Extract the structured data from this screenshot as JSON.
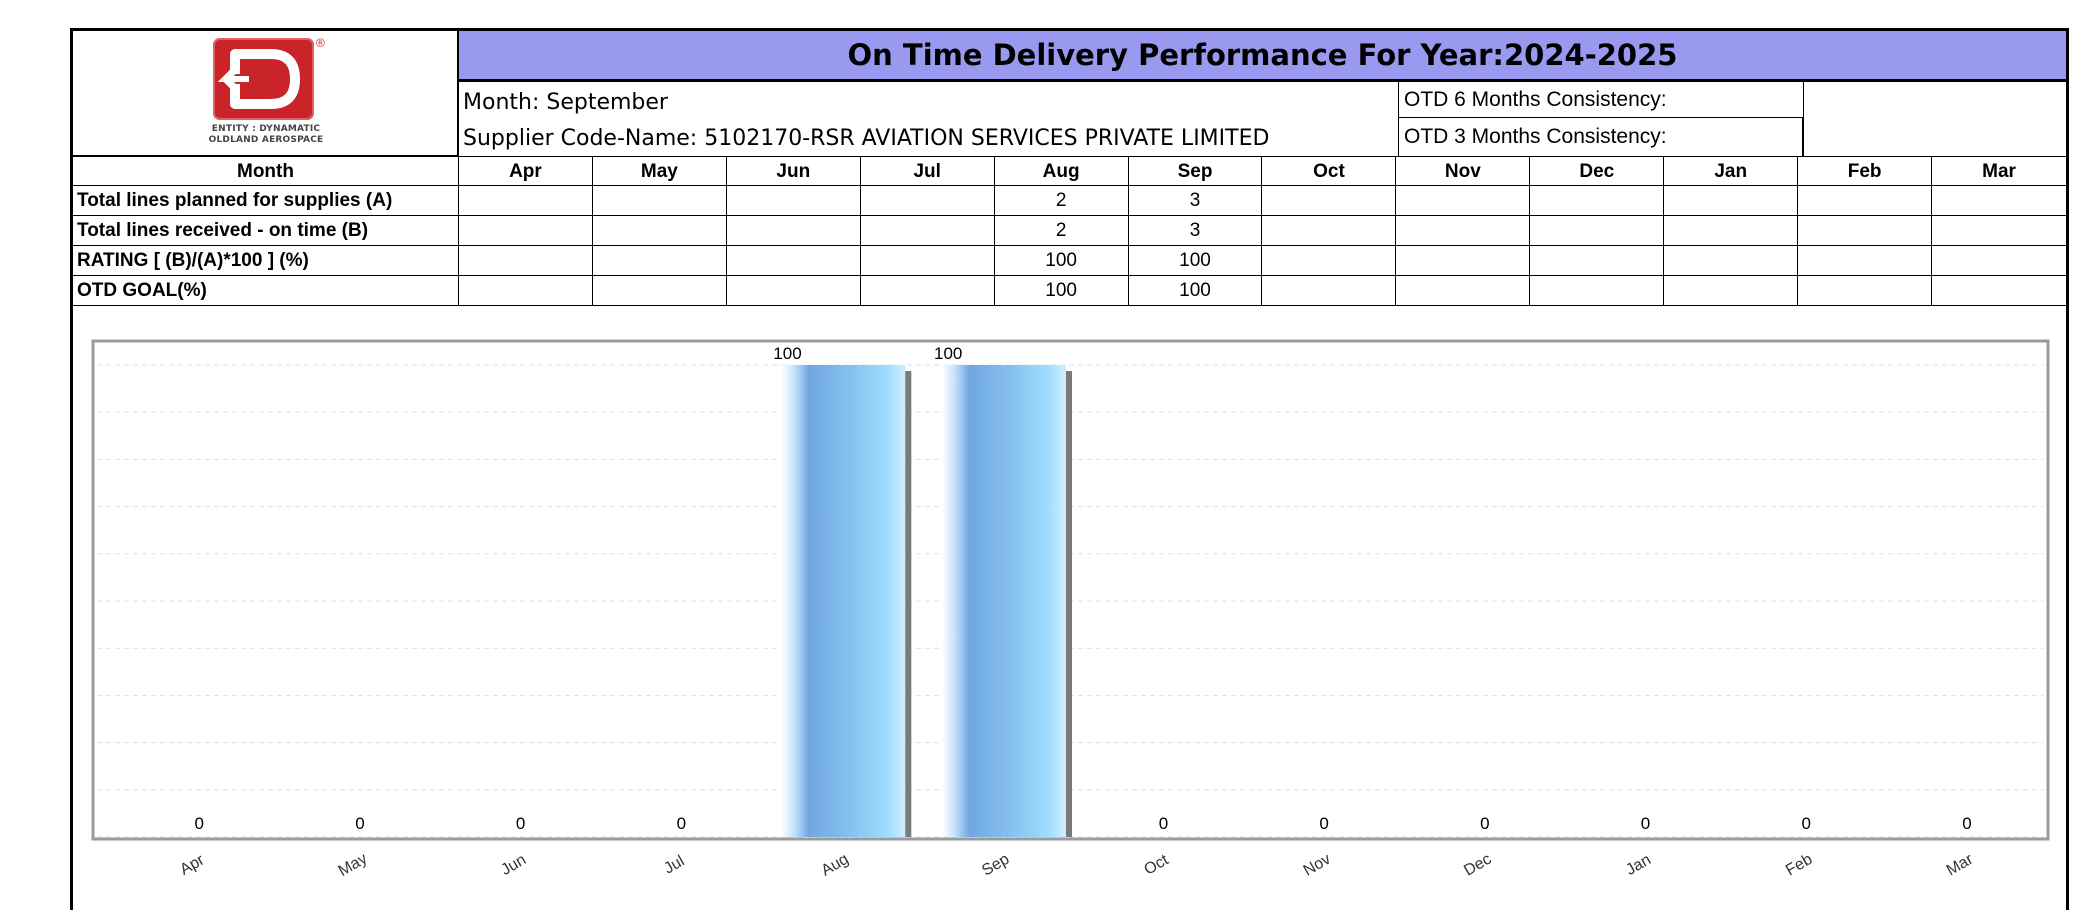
{
  "logo": {
    "alt_icon": "entity-dynamatic-logo",
    "registered_mark": "®",
    "line1": "ENTITY : DYNAMATIC",
    "line2": "OLDLAND AEROSPACE",
    "color": "#c8242a"
  },
  "header": {
    "title": "On Time Delivery Performance For Year:2024-2025",
    "title_bg": "#9999f0",
    "month_line": "Month: September",
    "supplier_line": "Supplier Code-Name: 5102170-RSR AVIATION SERVICES PRIVATE LIMITED",
    "otd6_label": "OTD 6 Months Consistency:",
    "otd3_label": "OTD 3 Months Consistency:"
  },
  "table": {
    "header_label": "Month",
    "months": [
      "Apr",
      "May",
      "Jun",
      "Jul",
      "Aug",
      "Sep",
      "Oct",
      "Nov",
      "Dec",
      "Jan",
      "Feb",
      "Mar"
    ],
    "rows": [
      {
        "label": "Total lines planned for supplies (A)",
        "values": [
          "",
          "",
          "",
          "",
          "2",
          "3",
          "",
          "",
          "",
          "",
          "",
          ""
        ]
      },
      {
        "label": "Total lines received - on time (B)",
        "values": [
          "",
          "",
          "",
          "",
          "2",
          "3",
          "",
          "",
          "",
          "",
          "",
          ""
        ]
      },
      {
        "label": "RATING [ (B)/(A)*100 ] (%)",
        "values": [
          "",
          "",
          "",
          "",
          "100",
          "100",
          "",
          "",
          "",
          "",
          "",
          ""
        ]
      },
      {
        "label": "OTD GOAL(%)",
        "values": [
          "",
          "",
          "",
          "",
          "100",
          "100",
          "",
          "",
          "",
          "",
          "",
          ""
        ]
      }
    ]
  },
  "chart_data": {
    "type": "bar",
    "categories": [
      "Apr",
      "May",
      "Jun",
      "Jul",
      "Aug",
      "Sep",
      "Oct",
      "Nov",
      "Dec",
      "Jan",
      "Feb",
      "Mar"
    ],
    "values": [
      0,
      0,
      0,
      0,
      100,
      100,
      0,
      0,
      0,
      0,
      0,
      0
    ],
    "data_labels": [
      "0",
      "0",
      "0",
      "0",
      "100",
      "100",
      "0",
      "0",
      "0",
      "0",
      "0",
      "0"
    ],
    "ylim": [
      0,
      100
    ],
    "grid": true,
    "bar_color": "#7fb3ea",
    "bar_highlight": "#9edcff",
    "title": "",
    "xlabel": "",
    "ylabel": ""
  }
}
